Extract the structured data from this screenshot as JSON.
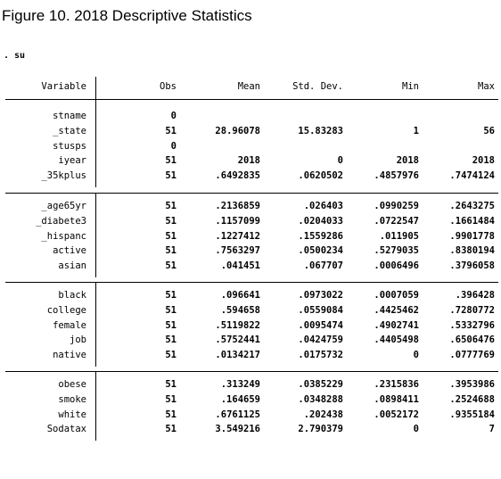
{
  "title": "Figure 10. 2018 Descriptive Statistics",
  "command": ". su",
  "headers": [
    "Variable",
    "Obs",
    "Mean",
    "Std. Dev.",
    "Min",
    "Max"
  ],
  "groups": [
    [
      [
        "stname",
        "0",
        "",
        "",
        "",
        ""
      ],
      [
        "_state",
        "51",
        "28.96078",
        "15.83283",
        "1",
        "56"
      ],
      [
        "stusps",
        "0",
        "",
        "",
        "",
        ""
      ],
      [
        "iyear",
        "51",
        "2018",
        "0",
        "2018",
        "2018"
      ],
      [
        "_35kplus",
        "51",
        ".6492835",
        ".0620502",
        ".4857976",
        ".7474124"
      ]
    ],
    [
      [
        "_age65yr",
        "51",
        ".2136859",
        ".026403",
        ".0990259",
        ".2643275"
      ],
      [
        "_diabete3",
        "51",
        ".1157099",
        ".0204033",
        ".0722547",
        ".1661484"
      ],
      [
        "_hispanc",
        "51",
        ".1227412",
        ".1559286",
        ".011905",
        ".9901778"
      ],
      [
        "active",
        "51",
        ".7563297",
        ".0500234",
        ".5279035",
        ".8380194"
      ],
      [
        "asian",
        "51",
        ".041451",
        ".067707",
        ".0006496",
        ".3796058"
      ]
    ],
    [
      [
        "black",
        "51",
        ".096641",
        ".0973022",
        ".0007059",
        ".396428"
      ],
      [
        "college",
        "51",
        ".594658",
        ".0559084",
        ".4425462",
        ".7280772"
      ],
      [
        "female",
        "51",
        ".5119822",
        ".0095474",
        ".4902741",
        ".5332796"
      ],
      [
        "job",
        "51",
        ".5752441",
        ".0424759",
        ".4405498",
        ".6506476"
      ],
      [
        "native",
        "51",
        ".0134217",
        ".0175732",
        "0",
        ".0777769"
      ]
    ],
    [
      [
        "obese",
        "51",
        ".313249",
        ".0385229",
        ".2315836",
        ".3953986"
      ],
      [
        "smoke",
        "51",
        ".164659",
        ".0348288",
        ".0898411",
        ".2524688"
      ],
      [
        "white",
        "51",
        ".6761125",
        ".202438",
        ".0052172",
        ".9355184"
      ],
      [
        "Sodatax",
        "51",
        "3.549216",
        "2.790379",
        "0",
        "7"
      ]
    ]
  ]
}
